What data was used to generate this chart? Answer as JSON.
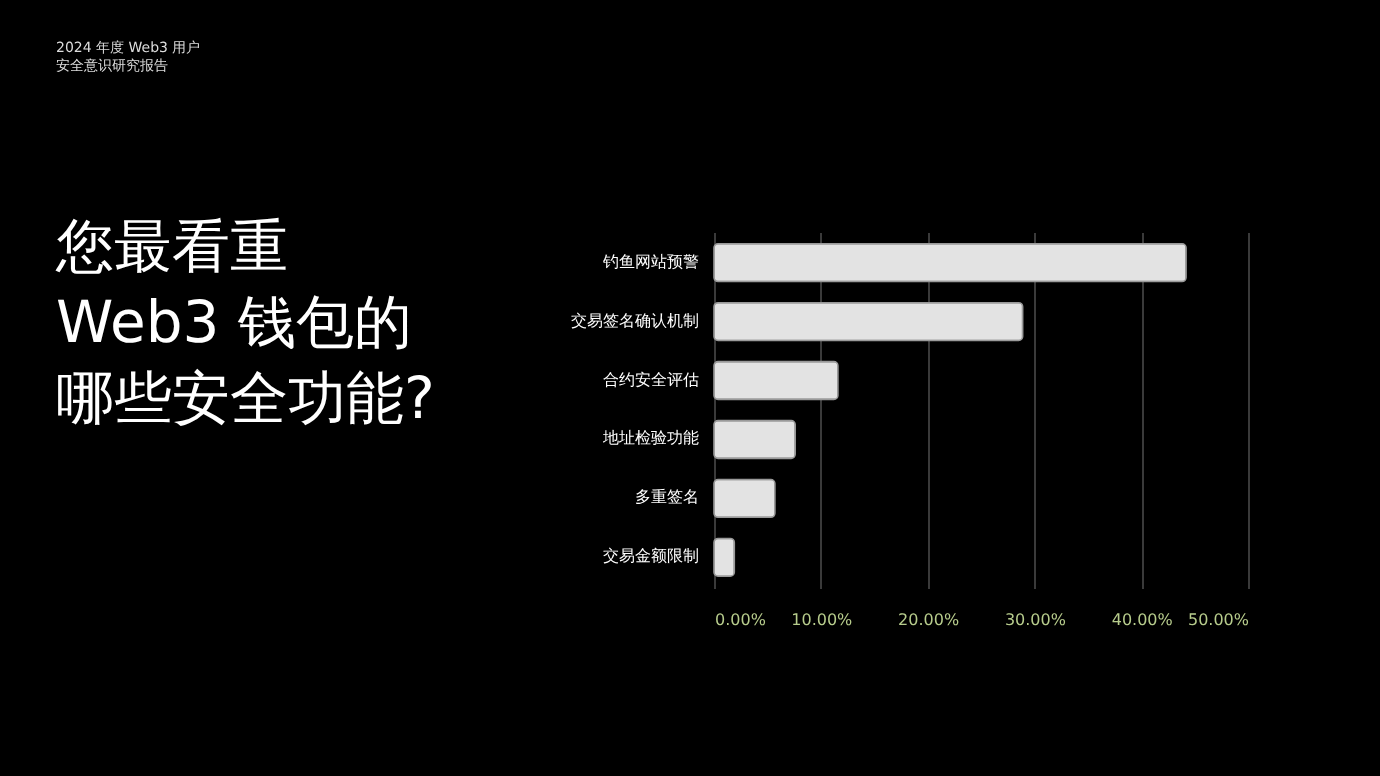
{
  "chart_data": {
    "type": "bar",
    "orientation": "horizontal",
    "title": "您最看重Web3 钱包的哪些安全功能?",
    "subtitle": "2024 年度 Web3 用户安全意识研究报告",
    "categories": [
      "钓鱼网站预警",
      "交易签名确认机制",
      "合约安全评估",
      "地址检验功能",
      "多重签名",
      "交易金额限制"
    ],
    "values": [
      44.2,
      28.9,
      11.6,
      7.6,
      5.7,
      1.9
    ],
    "color": "#e3e3e3",
    "xlim": [
      0,
      50
    ],
    "xticks": [
      {
        "value": 0,
        "label": "0.00%"
      },
      {
        "value": 10,
        "label": "10.00%"
      },
      {
        "value": 20,
        "label": "20.00%"
      },
      {
        "value": 30,
        "label": "30.00%"
      },
      {
        "value": 40,
        "label": "40.00%"
      },
      {
        "value": 50,
        "label": "50.00%"
      }
    ],
    "grid": "x"
  }
}
